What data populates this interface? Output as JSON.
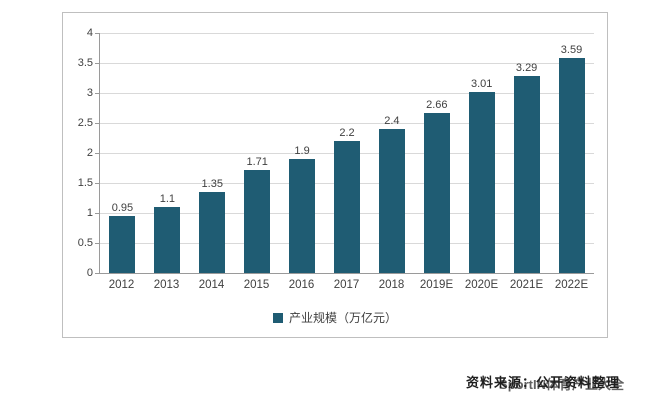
{
  "chart_data": {
    "type": "bar",
    "categories": [
      "2012",
      "2013",
      "2014",
      "2015",
      "2016",
      "2017",
      "2018",
      "2019E",
      "2020E",
      "2021E",
      "2022E"
    ],
    "values": [
      0.95,
      1.1,
      1.35,
      1.71,
      1.9,
      2.2,
      2.4,
      2.66,
      3.01,
      3.29,
      3.59
    ],
    "title": "",
    "xlabel": "",
    "ylabel": "",
    "ylim": [
      0,
      4
    ],
    "ytick_step": 0.5,
    "grid": true,
    "legend": [
      "产业规模（万亿元）"
    ],
    "legend_position": "bottom",
    "bar_color": "#1F5C73",
    "gridline_color": "#d9d9d9",
    "axis_color": "#9a9a9a"
  },
  "footer": {
    "source_text": "资料来源：公开资料整理",
    "watermark_text": "SportIN体育产业大全"
  }
}
